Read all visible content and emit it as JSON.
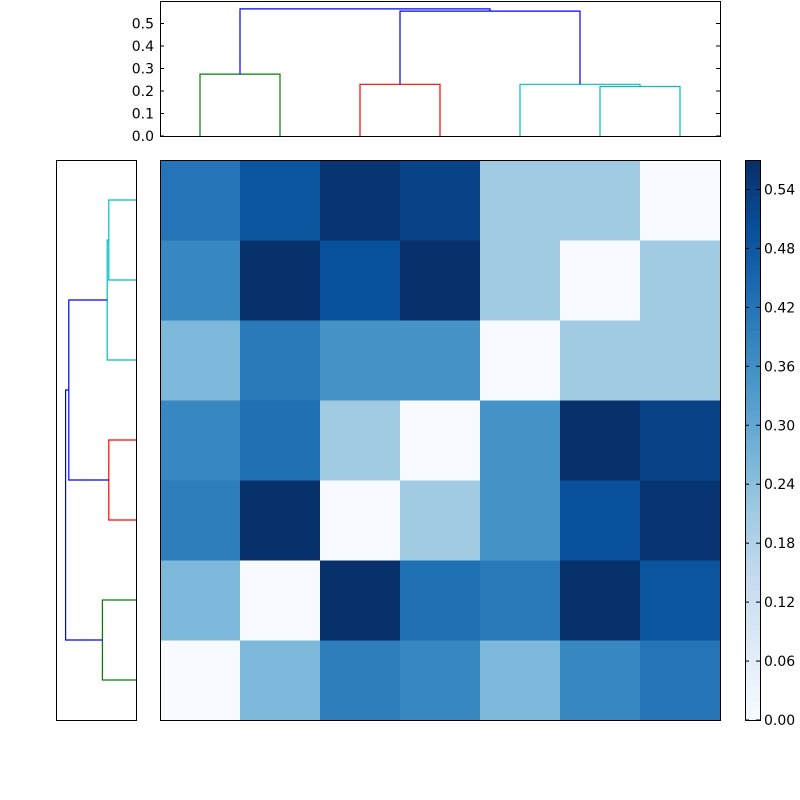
{
  "chart_data": [
    {
      "type": "dendrogram",
      "orientation": "top",
      "yaxis": {
        "range": [
          0,
          0.6
        ],
        "ticks": [
          "0.0",
          "0.1",
          "0.2",
          "0.3",
          "0.4",
          "0.5"
        ]
      },
      "links": [
        {
          "color": "#008000",
          "x": [
            0.5,
            0.5,
            1.5,
            1.5
          ],
          "y": [
            0,
            0.275,
            0.275,
            0
          ]
        },
        {
          "color": "#ff0000",
          "x": [
            2.5,
            2.5,
            3.5,
            3.5
          ],
          "y": [
            0,
            0.23,
            0.23,
            0
          ]
        },
        {
          "color": "#00bfbf",
          "x": [
            5.5,
            5.5,
            6.5,
            6.5
          ],
          "y": [
            0,
            0.22,
            0.22,
            0
          ]
        },
        {
          "color": "#00bfbf",
          "x": [
            4.5,
            4.5,
            6.0,
            6.0
          ],
          "y": [
            0,
            0.23,
            0.23,
            0.22
          ]
        },
        {
          "color": "#0000ff",
          "x": [
            3.0,
            3.0,
            5.25,
            5.25
          ],
          "y": [
            0.23,
            0.555,
            0.555,
            0.23
          ]
        },
        {
          "color": "#0000ff",
          "x": [
            1.0,
            1.0,
            4.125,
            4.125
          ],
          "y": [
            0.275,
            0.565,
            0.565,
            0.555
          ]
        }
      ]
    },
    {
      "type": "dendrogram",
      "orientation": "left",
      "links": [
        {
          "color": "#008000",
          "pos": [
            0.5,
            0.5,
            1.5,
            1.5
          ],
          "dist": [
            0,
            0.21,
            0.21,
            0
          ]
        },
        {
          "color": "#ff0000",
          "pos": [
            2.5,
            2.5,
            3.5,
            3.5
          ],
          "dist": [
            0,
            0.17,
            0.17,
            0
          ]
        },
        {
          "color": "#00bfbf",
          "pos": [
            5.5,
            5.5,
            6.5,
            6.5
          ],
          "dist": [
            0,
            0.17,
            0.17,
            0
          ]
        },
        {
          "color": "#00bfbf",
          "pos": [
            4.5,
            4.5,
            6.0,
            6.0
          ],
          "dist": [
            0,
            0.18,
            0.18,
            0.17
          ]
        },
        {
          "color": "#0000ff",
          "pos": [
            3.0,
            3.0,
            5.25,
            5.25
          ],
          "dist": [
            0.17,
            0.42,
            0.42,
            0.18
          ]
        },
        {
          "color": "#0000ff",
          "pos": [
            1.0,
            1.0,
            4.125,
            4.125
          ],
          "dist": [
            0.21,
            0.44,
            0.44,
            0.42
          ]
        }
      ]
    },
    {
      "type": "heatmap",
      "colormap": "Blues",
      "vmin": 0,
      "vmax": 0.57,
      "matrix": [
        [
          0.0,
          0.26,
          0.4,
          0.38,
          0.26,
          0.38,
          0.42
        ],
        [
          0.26,
          0.0,
          0.57,
          0.43,
          0.41,
          0.57,
          0.49
        ],
        [
          0.4,
          0.57,
          0.0,
          0.21,
          0.35,
          0.5,
          0.56
        ],
        [
          0.38,
          0.43,
          0.21,
          0.0,
          0.35,
          0.57,
          0.53
        ],
        [
          0.26,
          0.41,
          0.35,
          0.35,
          0.0,
          0.21,
          0.21
        ],
        [
          0.38,
          0.57,
          0.5,
          0.57,
          0.21,
          0.0,
          0.21
        ],
        [
          0.42,
          0.49,
          0.56,
          0.53,
          0.21,
          0.21,
          0.0
        ]
      ]
    },
    {
      "type": "colorbar",
      "colormap": "Blues",
      "range": [
        0,
        0.57
      ],
      "ticks": [
        "0.00",
        "0.06",
        "0.12",
        "0.18",
        "0.24",
        "0.30",
        "0.36",
        "0.42",
        "0.48",
        "0.54"
      ]
    }
  ]
}
